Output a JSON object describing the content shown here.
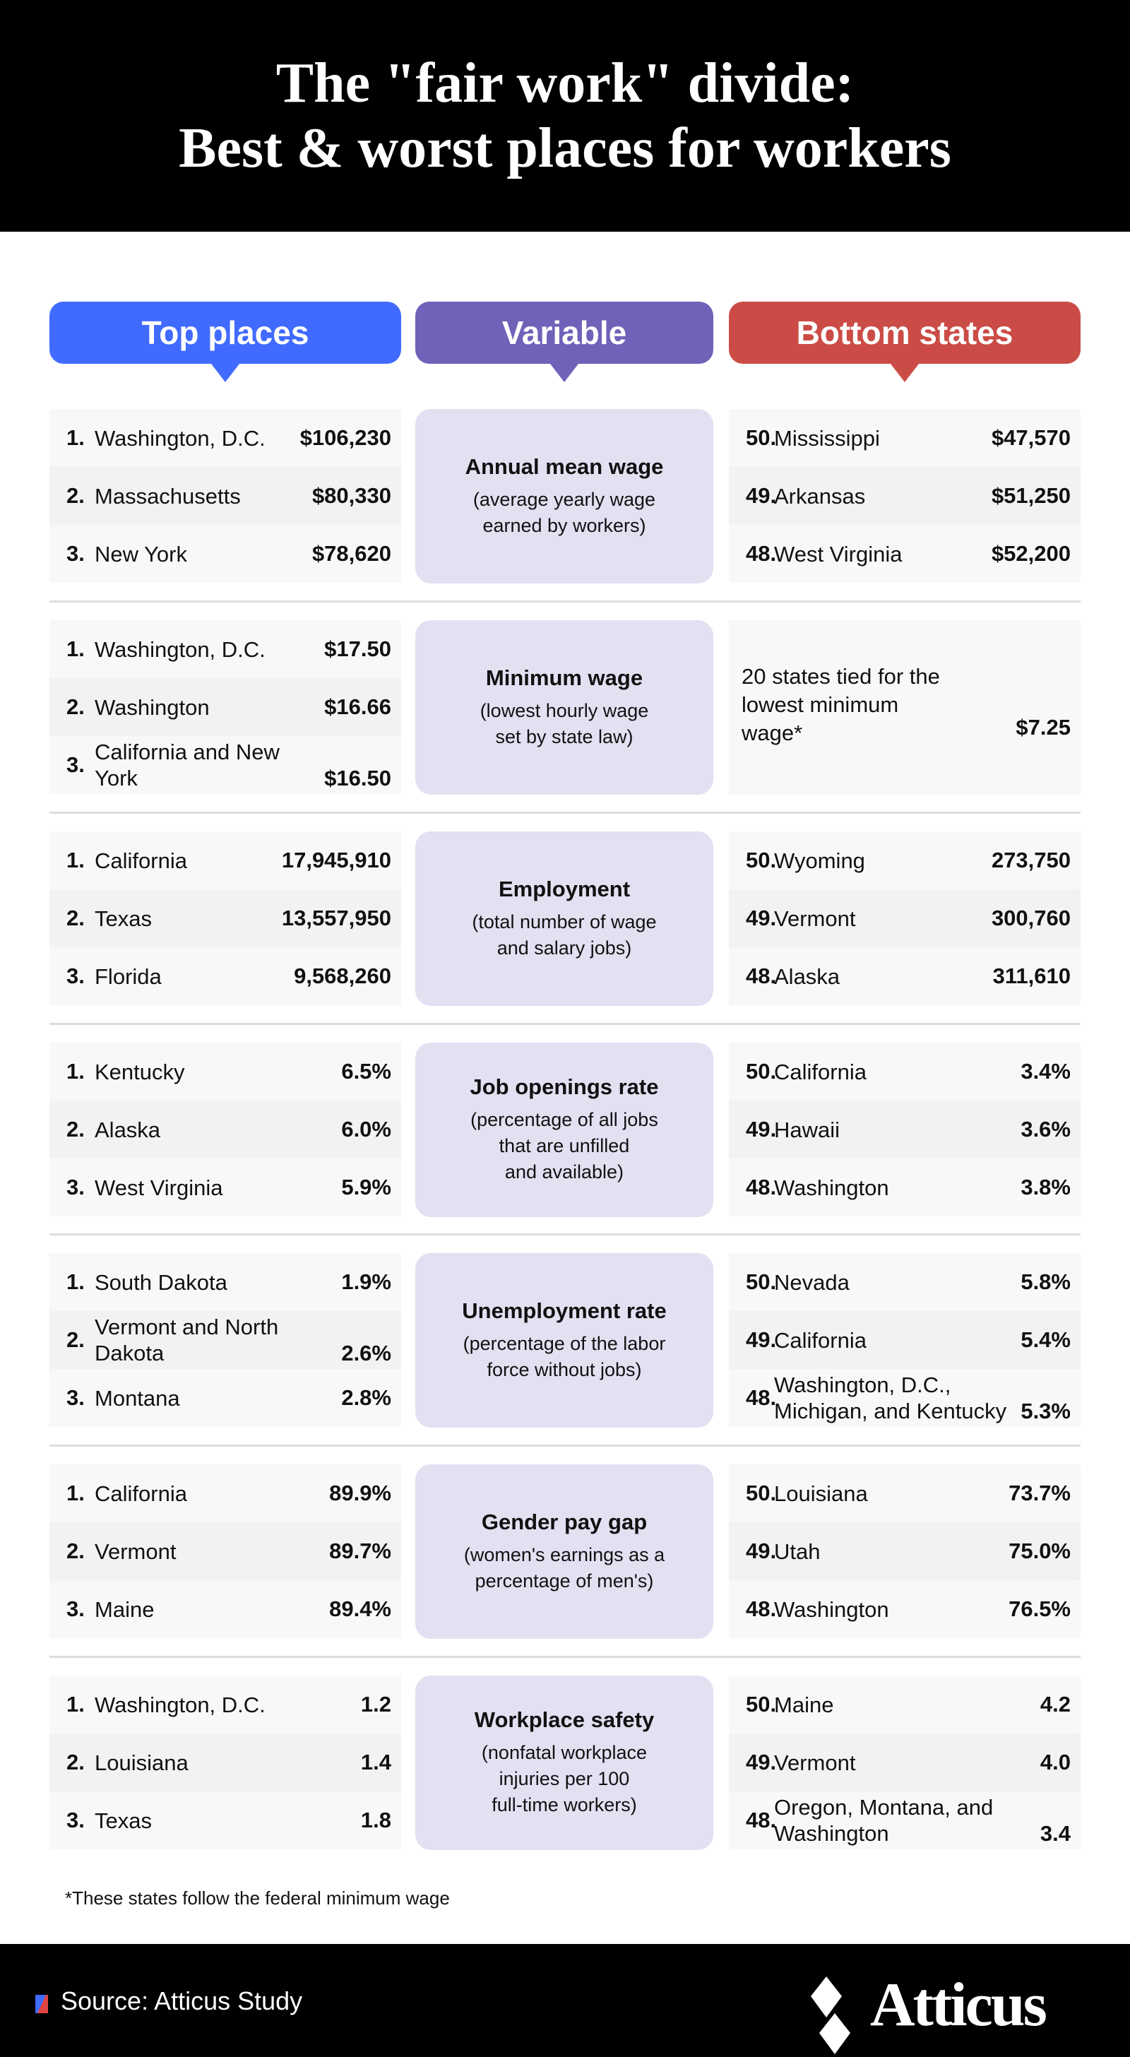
{
  "title": {
    "line1": "The \"fair work\" divide:",
    "line2": "Best & worst places for workers"
  },
  "headers": {
    "top": "Top places",
    "variable": "Variable",
    "bottom": "Bottom states"
  },
  "colors": {
    "top": "#416bff",
    "variable": "#6e62b9",
    "bottom": "#cb4c46",
    "variable_bg": "#e3e0f2"
  },
  "sections": [
    {
      "variable": "Annual mean wage",
      "desc": "(average yearly wage\nearned by workers)",
      "top": [
        {
          "n": "1.",
          "name": "Washington, D.C.",
          "v": "$106,230"
        },
        {
          "n": "2.",
          "name": "Massachusetts",
          "v": "$80,330"
        },
        {
          "n": "3.",
          "name": "New York",
          "v": "$78,620"
        }
      ],
      "bottom": [
        {
          "n": "50.",
          "name": "Mississippi",
          "v": "$47,570"
        },
        {
          "n": "49.",
          "name": "Arkansas",
          "v": "$51,250"
        },
        {
          "n": "48.",
          "name": "West Virginia",
          "v": "$52,200"
        }
      ]
    },
    {
      "variable": "Minimum wage",
      "desc": "(lowest hourly wage\nset by state law)",
      "top": [
        {
          "n": "1.",
          "name": "Washington, D.C.",
          "v": "$17.50"
        },
        {
          "n": "2.",
          "name": "Washington",
          "v": "$16.66"
        },
        {
          "n": "3.",
          "name": "California and New York",
          "v": "$16.50"
        }
      ],
      "bottom_tie": {
        "text": "20 states tied for the lowest minimum wage*",
        "v": "$7.25"
      }
    },
    {
      "variable": "Employment",
      "desc": "(total number of wage\nand salary jobs)",
      "top": [
        {
          "n": "1.",
          "name": "California",
          "v": "17,945,910"
        },
        {
          "n": "2.",
          "name": "Texas",
          "v": "13,557,950"
        },
        {
          "n": "3.",
          "name": "Florida",
          "v": "9,568,260"
        }
      ],
      "bottom": [
        {
          "n": "50.",
          "name": "Wyoming",
          "v": "273,750"
        },
        {
          "n": "49.",
          "name": "Vermont",
          "v": "300,760"
        },
        {
          "n": "48.",
          "name": "Alaska",
          "v": "311,610"
        }
      ]
    },
    {
      "variable": "Job openings rate",
      "desc": "(percentage of all jobs\nthat are unfilled\nand available)",
      "top": [
        {
          "n": "1.",
          "name": "Kentucky",
          "v": "6.5%"
        },
        {
          "n": "2.",
          "name": "Alaska",
          "v": "6.0%"
        },
        {
          "n": "3.",
          "name": "West Virginia",
          "v": "5.9%"
        }
      ],
      "bottom": [
        {
          "n": "50.",
          "name": "California",
          "v": "3.4%"
        },
        {
          "n": "49.",
          "name": "Hawaii",
          "v": "3.6%"
        },
        {
          "n": "48.",
          "name": "Washington",
          "v": "3.8%"
        }
      ]
    },
    {
      "variable": "Unemployment rate",
      "desc": "(percentage of the labor\nforce without jobs)",
      "top": [
        {
          "n": "1.",
          "name": "South Dakota",
          "v": "1.9%"
        },
        {
          "n": "2.",
          "name": "Vermont and North Dakota",
          "v": "2.6%"
        },
        {
          "n": "3.",
          "name": "Montana",
          "v": "2.8%"
        }
      ],
      "bottom": [
        {
          "n": "50.",
          "name": "Nevada",
          "v": "5.8%"
        },
        {
          "n": "49.",
          "name": "California",
          "v": "5.4%"
        },
        {
          "n": "48.",
          "name": "Washington, D.C., Michigan, and Kentucky",
          "v": "5.3%"
        }
      ]
    },
    {
      "variable": "Gender pay gap",
      "desc": "(women's earnings as a\npercentage of men's)",
      "top": [
        {
          "n": "1.",
          "name": "California",
          "v": "89.9%"
        },
        {
          "n": "2.",
          "name": "Vermont",
          "v": "89.7%"
        },
        {
          "n": "3.",
          "name": "Maine",
          "v": "89.4%"
        }
      ],
      "bottom": [
        {
          "n": "50.",
          "name": "Louisiana",
          "v": "73.7%"
        },
        {
          "n": "49.",
          "name": "Utah",
          "v": "75.0%"
        },
        {
          "n": "48.",
          "name": "Washington",
          "v": "76.5%"
        }
      ]
    },
    {
      "variable": "Workplace safety",
      "desc": "(nonfatal workplace\ninjuries per 100\nfull-time workers)",
      "top": [
        {
          "n": "1.",
          "name": "Washington, D.C.",
          "v": "1.2"
        },
        {
          "n": "2.",
          "name": "Louisiana",
          "v": "1.4"
        },
        {
          "n": "3.",
          "name": "Texas",
          "v": "1.8"
        }
      ],
      "bottom": [
        {
          "n": "50.",
          "name": "Maine",
          "v": "4.2"
        },
        {
          "n": "49.",
          "name": "Vermont",
          "v": "4.0"
        },
        {
          "n": "48.",
          "name": "Oregon, Montana, and Washington",
          "v": "3.4"
        }
      ]
    }
  ],
  "footnote": "*These states follow the federal minimum wage",
  "footer": {
    "source": "Source: Atticus Study",
    "logo": "Atticus"
  }
}
